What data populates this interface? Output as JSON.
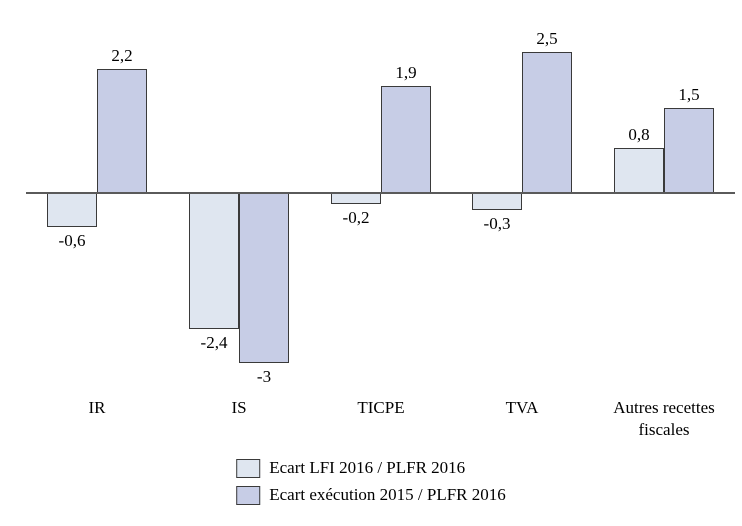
{
  "chart_data": {
    "type": "bar",
    "title": "",
    "xlabel": "",
    "ylabel": "",
    "grid": false,
    "legend_position": "bottom",
    "ylim": [
      -3.5,
      3.0
    ],
    "categories": [
      "IR",
      "IS",
      "TICPE",
      "TVA",
      "Autres recettes fiscales"
    ],
    "series": [
      {
        "name": "Ecart LFI 2016 / PLFR 2016",
        "color": "#dfe6f0",
        "values": [
          -0.6,
          -2.4,
          -0.2,
          -0.3,
          0.8
        ],
        "value_labels": [
          "-0,6",
          "-2,4",
          "-0,2",
          "-0,3",
          "0,8"
        ]
      },
      {
        "name": "Ecart exécution 2015 / PLFR 2016",
        "color": "#c7cde6",
        "values": [
          2.2,
          -3,
          1.9,
          2.5,
          1.5
        ],
        "value_labels": [
          "2,2",
          "-3",
          "1,9",
          "2,5",
          "1,5"
        ]
      }
    ]
  },
  "colors": {
    "axis": "#5a5a5a",
    "bar_border": "#3a3a3a",
    "text": "#000000",
    "background": "#ffffff"
  }
}
